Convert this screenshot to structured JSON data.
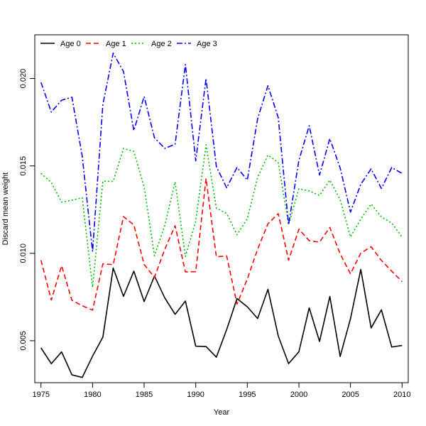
{
  "chart_data": {
    "type": "line",
    "title": "",
    "xlabel": "Year",
    "ylabel": "Discard mean weight",
    "xlim": [
      1974.4,
      2010.6
    ],
    "ylim": [
      0.0026,
      0.0225
    ],
    "x_ticks": [
      1975,
      1980,
      1985,
      1990,
      1995,
      2000,
      2005,
      2010
    ],
    "y_ticks": [
      0.005,
      0.01,
      0.015,
      0.02
    ],
    "y_tick_labels": [
      "0.005",
      "0.010",
      "0.015",
      "0.020"
    ],
    "grid": false,
    "legend_position": "top-left",
    "x": [
      1975,
      1976,
      1977,
      1978,
      1979,
      1980,
      1981,
      1982,
      1983,
      1984,
      1985,
      1986,
      1987,
      1988,
      1989,
      1990,
      1991,
      1992,
      1993,
      1994,
      1995,
      1996,
      1997,
      1998,
      1999,
      2000,
      2001,
      2002,
      2003,
      2004,
      2005,
      2006,
      2007,
      2008,
      2009,
      2010
    ],
    "series": [
      {
        "name": "Age 0",
        "color": "#000000",
        "dash": "solid",
        "values": [
          0.00459,
          0.00369,
          0.00436,
          0.00305,
          0.0029,
          0.00412,
          0.00521,
          0.00916,
          0.00754,
          0.00898,
          0.00724,
          0.0087,
          0.00745,
          0.00651,
          0.00727,
          0.00469,
          0.00467,
          0.00406,
          0.00564,
          0.00741,
          0.00694,
          0.00627,
          0.00794,
          0.00527,
          0.00369,
          0.00437,
          0.00688,
          0.00496,
          0.00753,
          0.0041,
          0.00626,
          0.00908,
          0.00573,
          0.00677,
          0.00464,
          0.00473
        ]
      },
      {
        "name": "Age 1",
        "color": "#ff0000",
        "dash": "dashed",
        "values": [
          0.00961,
          0.00733,
          0.00929,
          0.00731,
          0.007,
          0.00675,
          0.0094,
          0.00935,
          0.0121,
          0.01163,
          0.00936,
          0.00863,
          0.01023,
          0.01158,
          0.00894,
          0.00895,
          0.01428,
          0.0098,
          0.00985,
          0.0071,
          0.00853,
          0.01024,
          0.01169,
          0.01227,
          0.00961,
          0.01138,
          0.01072,
          0.01064,
          0.01148,
          0.00997,
          0.00883,
          0.01001,
          0.01038,
          0.00959,
          0.00898,
          0.00838
        ]
      },
      {
        "name": "Age 2",
        "color": "#00bb00",
        "dash": "dotted",
        "values": [
          0.01458,
          0.01405,
          0.01293,
          0.01304,
          0.01318,
          0.00805,
          0.01413,
          0.01411,
          0.016,
          0.01583,
          0.0138,
          0.00986,
          0.0116,
          0.01408,
          0.00982,
          0.01184,
          0.01621,
          0.01258,
          0.01228,
          0.01106,
          0.01198,
          0.01435,
          0.01562,
          0.01519,
          0.01164,
          0.01369,
          0.01357,
          0.01331,
          0.01419,
          0.01307,
          0.01094,
          0.01196,
          0.01282,
          0.01208,
          0.01173,
          0.01093
        ]
      },
      {
        "name": "Age 3",
        "color": "#0000ff",
        "dash": "dashdot",
        "values": [
          0.01978,
          0.01808,
          0.01876,
          0.01893,
          0.01555,
          0.0101,
          0.01852,
          0.02145,
          0.0204,
          0.01702,
          0.01897,
          0.01661,
          0.016,
          0.01624,
          0.0208,
          0.01529,
          0.02,
          0.01496,
          0.01375,
          0.01491,
          0.01419,
          0.0177,
          0.01959,
          0.01776,
          0.01165,
          0.01532,
          0.0173,
          0.01448,
          0.01656,
          0.01488,
          0.01236,
          0.01395,
          0.01483,
          0.01371,
          0.01491,
          0.01457
        ]
      }
    ]
  }
}
